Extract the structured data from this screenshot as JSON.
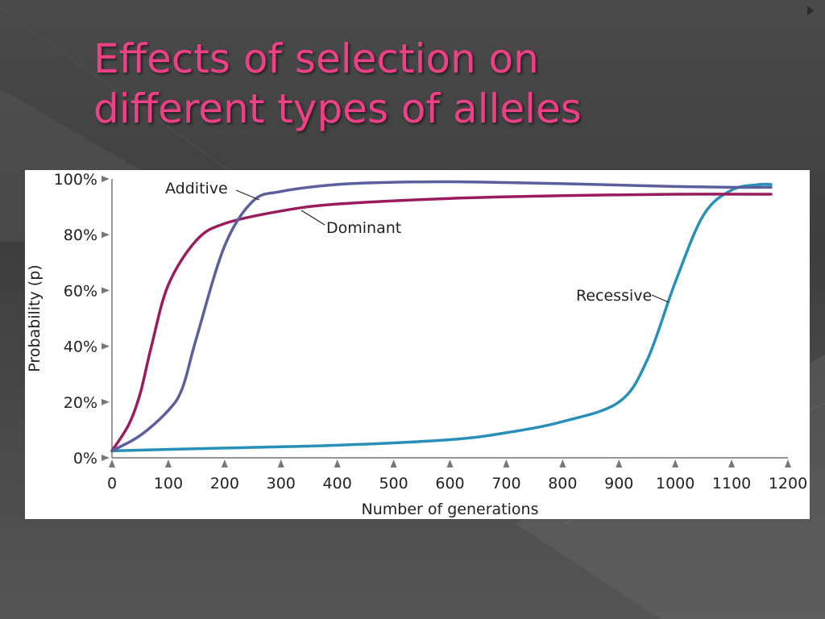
{
  "slide": {
    "title_lines": [
      "Effects of selection on",
      "different types of alleles"
    ]
  },
  "chart_data": {
    "type": "line",
    "xlabel": "Number of generations",
    "ylabel": "Probability (p)",
    "xlim": [
      0,
      1200
    ],
    "ylim": [
      0,
      100
    ],
    "x_ticks": [
      0,
      100,
      200,
      300,
      400,
      500,
      600,
      700,
      800,
      900,
      1000,
      1100,
      1200
    ],
    "y_ticks": [
      0,
      20,
      40,
      60,
      80,
      100
    ],
    "y_tick_labels": [
      "0%",
      "20%",
      "40%",
      "60%",
      "80%",
      "100%"
    ],
    "grid": false,
    "legend": "none (series labelled directly on the chart)",
    "series": [
      {
        "name": "Additive",
        "color": "#5b5f9e",
        "x": [
          0,
          50,
          100,
          125,
          150,
          200,
          250,
          300,
          400,
          500,
          600,
          700,
          800,
          900,
          1000,
          1100,
          1170
        ],
        "y": [
          2.5,
          8,
          17,
          25,
          43,
          76,
          92,
          95.5,
          98,
          98.8,
          99,
          98.7,
          98.3,
          97.8,
          97.3,
          97,
          97
        ]
      },
      {
        "name": "Dominant",
        "color": "#9b1c5e",
        "x": [
          0,
          30,
          50,
          70,
          100,
          150,
          200,
          300,
          400,
          600,
          800,
          1000,
          1170
        ],
        "y": [
          2.5,
          12,
          23,
          40,
          62,
          78,
          84,
          88.5,
          91,
          93,
          94,
          94.5,
          94.5
        ]
      },
      {
        "name": "Recessive",
        "color": "#2890b8",
        "x": [
          0,
          200,
          400,
          600,
          700,
          800,
          900,
          950,
          1000,
          1050,
          1100,
          1150,
          1170
        ],
        "y": [
          2.5,
          3.5,
          4.5,
          6.5,
          9,
          13,
          20,
          35,
          63,
          87,
          96,
          98,
          98
        ]
      }
    ]
  }
}
